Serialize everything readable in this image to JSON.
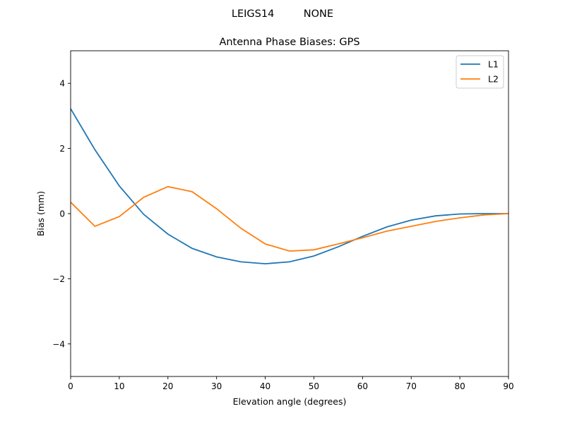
{
  "chart_data": {
    "type": "line",
    "suptitle": "LEIGS14         NONE",
    "title": "Antenna Phase Biases: GPS",
    "xlabel": "Elevation angle (degrees)",
    "ylabel": "Bias (mm)",
    "xlim": [
      0,
      90
    ],
    "ylim": [
      -5,
      5
    ],
    "xticks": [
      0,
      10,
      20,
      30,
      40,
      50,
      60,
      70,
      80,
      90
    ],
    "yticks": [
      -4,
      -2,
      0,
      2,
      4
    ],
    "ytick_labels": [
      "−4",
      "−2",
      "0",
      "2",
      "4"
    ],
    "grid": false,
    "legend_position": "top-right",
    "x": [
      0,
      5,
      10,
      15,
      20,
      25,
      30,
      35,
      40,
      45,
      50,
      55,
      60,
      65,
      70,
      75,
      80,
      85,
      90
    ],
    "series": [
      {
        "name": "L1",
        "color": "#1f77b4",
        "values": [
          3.22,
          1.96,
          0.85,
          -0.02,
          -0.63,
          -1.07,
          -1.33,
          -1.48,
          -1.54,
          -1.48,
          -1.3,
          -1.02,
          -0.7,
          -0.41,
          -0.2,
          -0.07,
          -0.01,
          0.0,
          0.0
        ]
      },
      {
        "name": "L2",
        "color": "#ff7f0e",
        "values": [
          0.35,
          -0.39,
          -0.09,
          0.5,
          0.83,
          0.67,
          0.15,
          -0.45,
          -0.93,
          -1.15,
          -1.11,
          -0.93,
          -0.74,
          -0.54,
          -0.39,
          -0.24,
          -0.13,
          -0.04,
          0.0
        ]
      }
    ]
  }
}
